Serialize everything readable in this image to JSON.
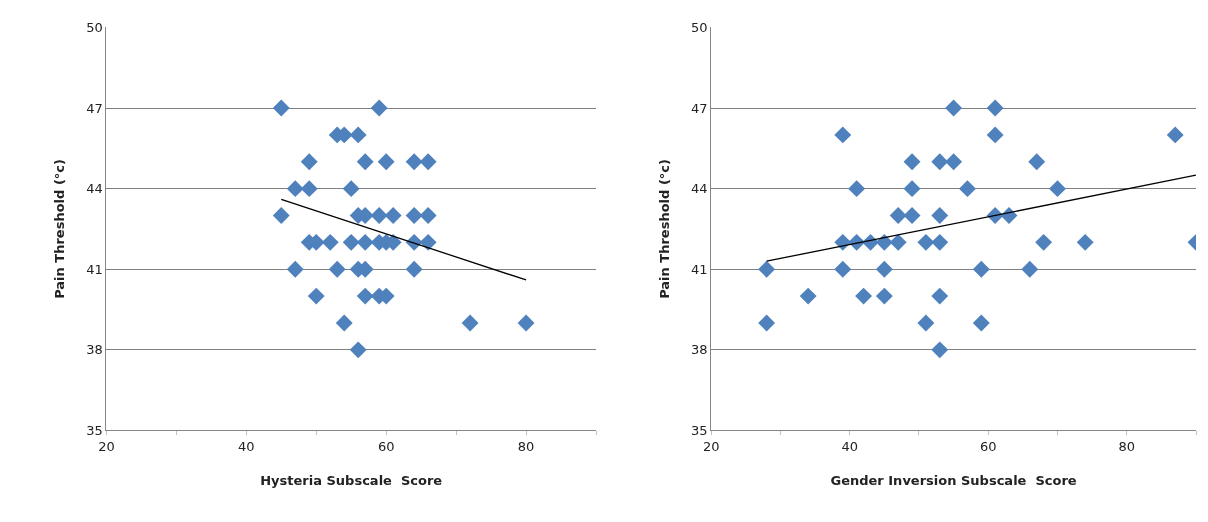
{
  "chart_data": [
    {
      "type": "scatter",
      "xlabel": "Hysteria Subscale  Score",
      "ylabel": "Pain Threshold (°c)",
      "xlim": [
        20,
        90
      ],
      "ylim": [
        35,
        50
      ],
      "xticks": [
        20,
        {
          "value": 30,
          "label": null
        },
        40,
        {
          "value": 50,
          "label": null
        },
        60,
        {
          "value": 70,
          "label": null
        },
        80,
        {
          "value": 90,
          "label": null
        }
      ],
      "yticks": [
        35,
        38,
        41,
        44,
        47,
        50
      ],
      "grid": "y",
      "marker": "diamond",
      "series": [
        {
          "color": "#4f81bd",
          "x": [
            45,
            59,
            53,
            54,
            56,
            49,
            57,
            60,
            64,
            66,
            47,
            49,
            55,
            45,
            56,
            57,
            59,
            61,
            64,
            66,
            49,
            50,
            52,
            55,
            57,
            59,
            60,
            61,
            64,
            66,
            47,
            53,
            56,
            57,
            64,
            50,
            57,
            59,
            60,
            54,
            72,
            80,
            56
          ],
          "values": [
            47,
            47,
            46,
            46,
            46,
            45,
            45,
            45,
            45,
            45,
            44,
            44,
            44,
            43,
            43,
            43,
            43,
            43,
            43,
            43,
            42,
            42,
            42,
            42,
            42,
            42,
            42,
            42,
            42,
            42,
            41,
            41,
            41,
            41,
            41,
            40,
            40,
            40,
            40,
            39,
            39,
            39,
            38
          ]
        },
        {
          "type": "line",
          "color": "#000000",
          "marker": "none",
          "x": [
            45,
            80
          ],
          "values": [
            43.6,
            40.6
          ]
        }
      ]
    },
    {
      "type": "scatter",
      "xlabel": "Gender Inversion Subscale  Score",
      "ylabel": "Pain Threshold (°c)",
      "xlim": [
        20,
        90
      ],
      "ylim": [
        35,
        50
      ],
      "xticks": [
        20,
        {
          "value": 30,
          "label": null
        },
        40,
        {
          "value": 50,
          "label": null
        },
        60,
        {
          "value": 70,
          "label": null
        },
        80,
        {
          "value": 90,
          "label": null
        }
      ],
      "yticks": [
        35,
        38,
        41,
        44,
        47,
        50
      ],
      "grid": "y",
      "marker": "diamond",
      "series": [
        {
          "color": "#4f81bd",
          "x": [
            55,
            61,
            39,
            61,
            87,
            49,
            53,
            55,
            67,
            41,
            49,
            57,
            70,
            47,
            49,
            53,
            61,
            63,
            39,
            41,
            43,
            45,
            47,
            51,
            53,
            68,
            74,
            90,
            28,
            39,
            45,
            59,
            66,
            34,
            42,
            45,
            53,
            28,
            51,
            59,
            53
          ],
          "values": [
            47,
            47,
            46,
            46,
            46,
            45,
            45,
            45,
            45,
            44,
            44,
            44,
            44,
            43,
            43,
            43,
            43,
            43,
            42,
            42,
            42,
            42,
            42,
            42,
            42,
            42,
            42,
            42,
            41,
            41,
            41,
            41,
            41,
            40,
            40,
            40,
            40,
            39,
            39,
            39,
            38
          ]
        },
        {
          "type": "line",
          "color": "#000000",
          "marker": "none",
          "x": [
            28,
            90
          ],
          "values": [
            41.3,
            44.5
          ]
        }
      ]
    }
  ]
}
